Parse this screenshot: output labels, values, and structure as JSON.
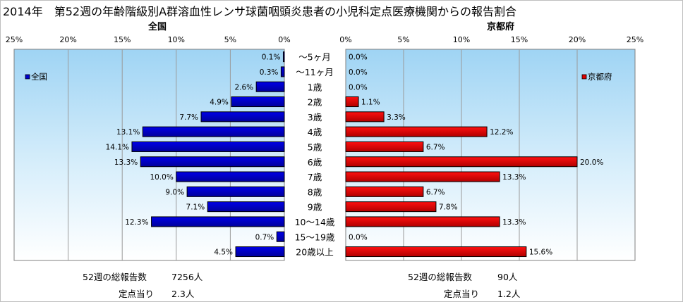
{
  "title": "2014年　第52週の年齢階級別A群溶血性レンサ球菌咽頭炎患者の小児科定点医療機関からの報告割合",
  "chart_data": [
    {
      "type": "bar",
      "orientation": "horizontal",
      "direction": "leftward",
      "title": "全国",
      "categories": [
        "～5ヶ月",
        "～11ヶ月",
        "1歳",
        "2歳",
        "3歳",
        "4歳",
        "5歳",
        "6歳",
        "7歳",
        "8歳",
        "9歳",
        "10～14歳",
        "15～19歳",
        "20歳以上"
      ],
      "series": [
        {
          "name": "全国",
          "color": "#0000cc",
          "values": [
            0.1,
            0.3,
            2.6,
            4.9,
            7.7,
            13.1,
            14.1,
            13.3,
            10.0,
            9.0,
            7.1,
            12.3,
            0.7,
            4.5
          ],
          "labels": [
            "0.1%",
            "0.3%",
            "2.6%",
            "4.9%",
            "7.7%",
            "13.1%",
            "14.1%",
            "13.3%",
            "10.0%",
            "9.0%",
            "7.1%",
            "12.3%",
            "0.7%",
            "4.5%"
          ]
        }
      ],
      "xlim": [
        0,
        25
      ],
      "ticks": [
        "0%",
        "5%",
        "10%",
        "15%",
        "20%",
        "25%"
      ],
      "legend_position": "top-left",
      "grid": true
    },
    {
      "type": "bar",
      "orientation": "horizontal",
      "direction": "rightward",
      "title": "京都府",
      "categories": [
        "～5ヶ月",
        "～11ヶ月",
        "1歳",
        "2歳",
        "3歳",
        "4歳",
        "5歳",
        "6歳",
        "7歳",
        "8歳",
        "9歳",
        "10～14歳",
        "15～19歳",
        "20歳以上"
      ],
      "series": [
        {
          "name": "京都府",
          "color": "#e00000",
          "values": [
            0.0,
            0.0,
            0.0,
            1.1,
            3.3,
            12.2,
            6.7,
            20.0,
            13.3,
            6.7,
            7.8,
            13.3,
            0.0,
            15.6
          ],
          "labels": [
            "0.0%",
            "0.0%",
            "0.0%",
            "1.1%",
            "3.3%",
            "12.2%",
            "6.7%",
            "20.0%",
            "13.3%",
            "6.7%",
            "7.8%",
            "13.3%",
            "0.0%",
            "15.6%"
          ]
        }
      ],
      "xlim": [
        0,
        25
      ],
      "ticks": [
        "0%",
        "5%",
        "10%",
        "15%",
        "20%",
        "25%"
      ],
      "legend_position": "top-right",
      "grid": true
    }
  ],
  "footer": {
    "left_total_label": "52週の総報告数",
    "left_total_value": "7256人",
    "left_per_label": "定点当り",
    "left_per_value": "2.3人",
    "right_total_label": "52週の総報告数",
    "right_total_value": "90人",
    "right_per_label": "定点当り",
    "right_per_value": "1.2人"
  }
}
